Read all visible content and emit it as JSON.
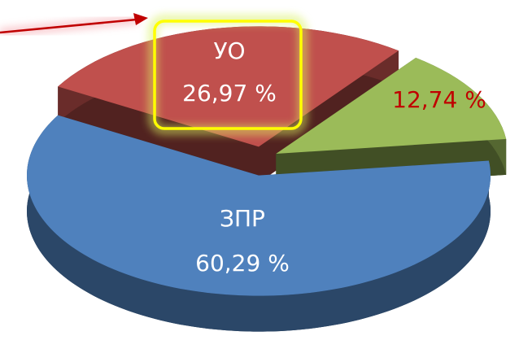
{
  "chart_data": {
    "type": "pie3d",
    "categories": [
      "УО",
      null,
      "ЗПР"
    ],
    "values": [
      26.97,
      12.74,
      60.29
    ],
    "value_labels": [
      "26,97 %",
      "12,74 %",
      "60,29 %"
    ],
    "colors": [
      "#c0504d",
      "#9bbb59",
      "#4f81bd"
    ]
  }
}
